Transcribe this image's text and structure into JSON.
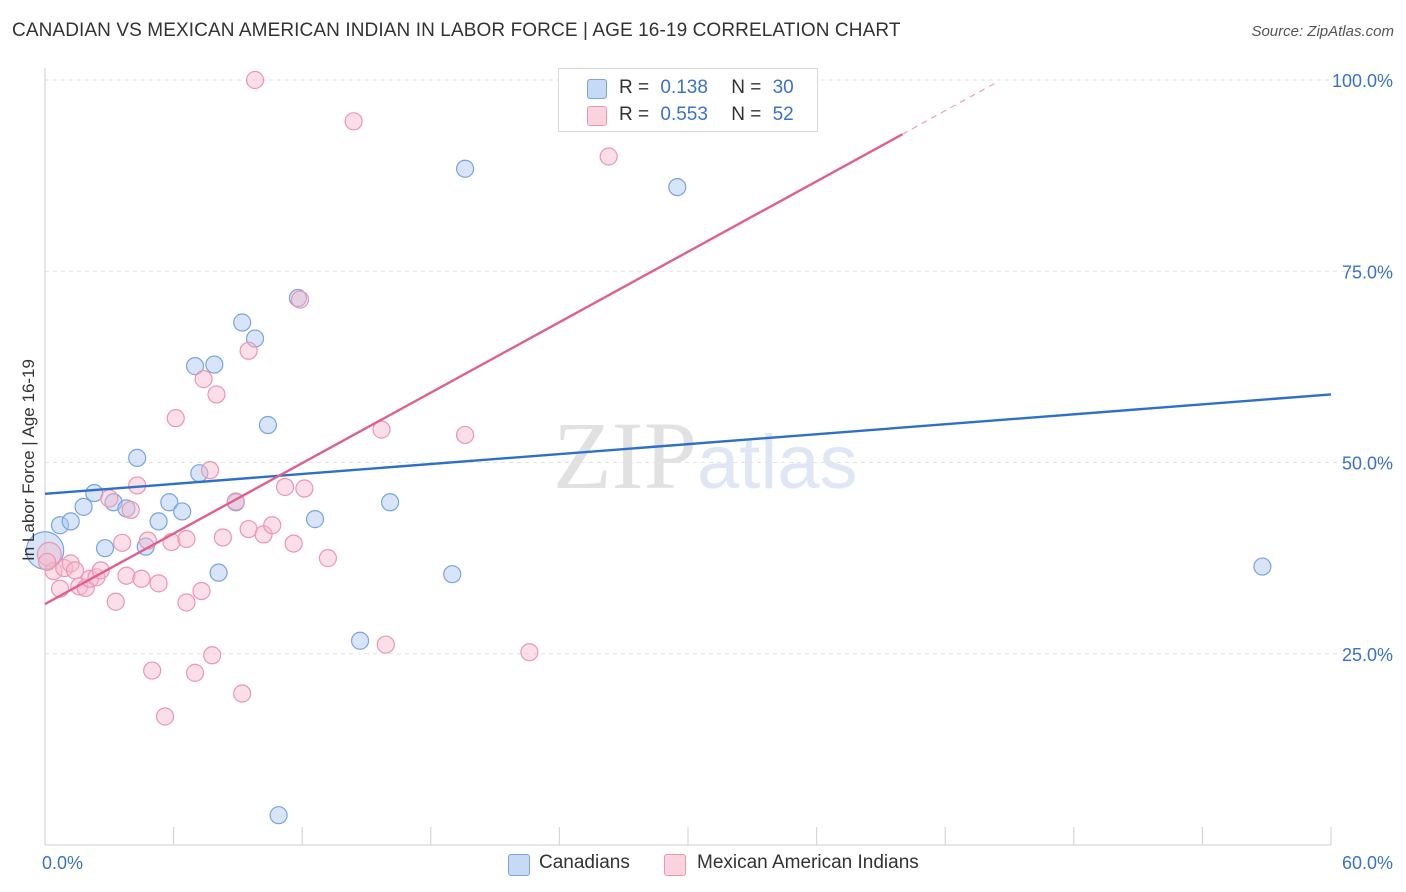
{
  "title": "CANADIAN VS MEXICAN AMERICAN INDIAN IN LABOR FORCE | AGE 16-19 CORRELATION CHART",
  "source": "Source: ZipAtlas.com",
  "watermark": {
    "zip": "ZIP",
    "atlas": "atlas"
  },
  "legend": [
    {
      "r_label": "R =",
      "r_value": "0.138",
      "n_label": "N =",
      "n_value": "30",
      "color": "#a8c5ef"
    },
    {
      "r_label": "R =",
      "r_value": "0.553",
      "n_label": "N =",
      "n_value": "52",
      "color": "#f6b8cb"
    }
  ],
  "bottom_legend": [
    "Canadians",
    "Mexican American Indians"
  ],
  "chart_data": {
    "type": "scatter",
    "title": "CANADIAN VS MEXICAN AMERICAN INDIAN IN LABOR FORCE | AGE 16-19 CORRELATION CHART",
    "xlabel": "",
    "ylabel": "In Labor Force | Age 16-19",
    "xlim": [
      0,
      60
    ],
    "ylim": [
      0,
      100
    ],
    "x_tick_labels": [
      "0.0%",
      "60.0%"
    ],
    "y_ticks": [
      25,
      50,
      75,
      100
    ],
    "y_tick_labels": [
      "25.0%",
      "50.0%",
      "75.0%",
      "100.0%"
    ],
    "grid": true,
    "legend_position": "top-center",
    "series": [
      {
        "name": "Canadians",
        "color": "#a8c5ef",
        "edge_color": "#7aa3df",
        "line_color": "#2f6fcc",
        "trend": {
          "x": [
            0,
            60
          ],
          "y": [
            45.9,
            58.9
          ]
        },
        "points": [
          [
            0.0,
            38.5,
            2.2
          ],
          [
            0.7,
            41.8,
            1
          ],
          [
            1.2,
            42.3,
            1
          ],
          [
            1.8,
            44.2,
            1
          ],
          [
            2.3,
            46.0,
            1
          ],
          [
            2.8,
            38.8,
            1
          ],
          [
            3.2,
            44.8,
            1
          ],
          [
            3.8,
            44.0,
            1
          ],
          [
            4.3,
            50.6,
            1
          ],
          [
            4.7,
            39.0,
            1
          ],
          [
            5.3,
            42.3,
            1
          ],
          [
            5.8,
            44.8,
            1
          ],
          [
            6.4,
            43.6,
            1
          ],
          [
            7.0,
            62.6,
            1
          ],
          [
            7.2,
            48.6,
            1
          ],
          [
            7.9,
            62.8,
            1
          ],
          [
            8.1,
            35.6,
            1
          ],
          [
            8.9,
            44.8,
            1
          ],
          [
            9.2,
            68.3,
            1
          ],
          [
            9.8,
            66.2,
            1
          ],
          [
            10.4,
            54.9,
            1
          ],
          [
            10.9,
            3.9,
            1
          ],
          [
            11.8,
            71.5,
            1
          ],
          [
            12.6,
            42.6,
            1
          ],
          [
            14.7,
            26.7,
            1
          ],
          [
            16.1,
            44.8,
            1
          ],
          [
            19.0,
            35.4,
            1
          ],
          [
            19.6,
            88.4,
            1
          ],
          [
            29.5,
            86.0,
            1
          ],
          [
            56.8,
            36.4,
            1
          ]
        ]
      },
      {
        "name": "Mexican American Indians",
        "color": "#f6b8cb",
        "edge_color": "#ee95b0",
        "line_color": "#e0608d",
        "trend": {
          "x": [
            0,
            40
          ],
          "y": [
            31.5,
            92.9
          ]
        },
        "trend_dashed": {
          "x": [
            40,
            44.4
          ],
          "y": [
            92.9,
            99.7
          ]
        },
        "points": [
          [
            0.2,
            38.0,
            1.4
          ],
          [
            0.4,
            35.8,
            1
          ],
          [
            0.7,
            33.5,
            1
          ],
          [
            0.9,
            36.2,
            1
          ],
          [
            1.2,
            36.8,
            1
          ],
          [
            1.4,
            35.9,
            1
          ],
          [
            1.6,
            33.8,
            1
          ],
          [
            1.9,
            33.6,
            1
          ],
          [
            2.1,
            34.8,
            1
          ],
          [
            2.4,
            35.0,
            1
          ],
          [
            2.6,
            35.9,
            1
          ],
          [
            3.0,
            45.3,
            1
          ],
          [
            3.3,
            31.8,
            1
          ],
          [
            3.6,
            39.5,
            1
          ],
          [
            3.8,
            35.2,
            1
          ],
          [
            4.0,
            43.8,
            1
          ],
          [
            4.3,
            47.0,
            1
          ],
          [
            4.5,
            34.8,
            1
          ],
          [
            4.8,
            39.8,
            1
          ],
          [
            5.0,
            22.8,
            1
          ],
          [
            5.3,
            34.2,
            1
          ],
          [
            5.6,
            16.8,
            1
          ],
          [
            5.9,
            39.6,
            1
          ],
          [
            6.1,
            55.8,
            1
          ],
          [
            6.6,
            40.0,
            1
          ],
          [
            6.6,
            31.7,
            1
          ],
          [
            7.0,
            22.5,
            1
          ],
          [
            7.3,
            33.2,
            1
          ],
          [
            7.4,
            60.9,
            1
          ],
          [
            7.7,
            49.0,
            1
          ],
          [
            7.8,
            24.8,
            1
          ],
          [
            8.0,
            58.9,
            1
          ],
          [
            8.3,
            40.2,
            1
          ],
          [
            8.9,
            44.9,
            1
          ],
          [
            9.2,
            19.8,
            1
          ],
          [
            9.5,
            41.3,
            1
          ],
          [
            9.5,
            64.6,
            1
          ],
          [
            9.8,
            100.0,
            1
          ],
          [
            10.2,
            40.6,
            1
          ],
          [
            10.6,
            41.8,
            1
          ],
          [
            11.2,
            46.8,
            1
          ],
          [
            11.6,
            39.4,
            1
          ],
          [
            11.9,
            71.3,
            1
          ],
          [
            12.1,
            46.6,
            1
          ],
          [
            13.2,
            37.5,
            1
          ],
          [
            14.4,
            94.6,
            1
          ],
          [
            15.7,
            54.3,
            1
          ],
          [
            15.9,
            26.2,
            1
          ],
          [
            19.6,
            53.6,
            1
          ],
          [
            22.6,
            25.2,
            1
          ],
          [
            26.3,
            90.0,
            1
          ],
          [
            0.1,
            37.0,
            1
          ]
        ]
      }
    ]
  }
}
